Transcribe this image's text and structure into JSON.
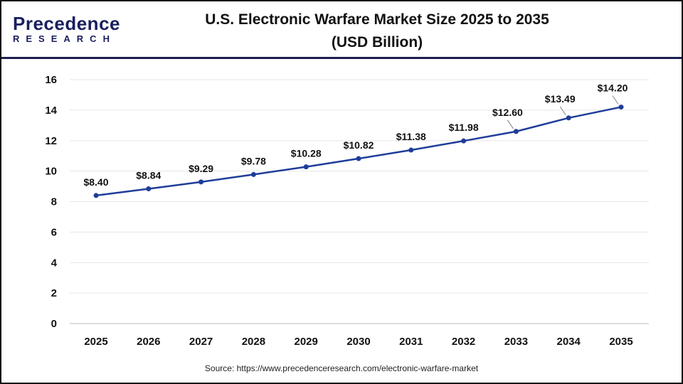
{
  "logo": {
    "line1": "Precedence",
    "line2": "RESEARCH"
  },
  "title_line1": "U.S. Electronic Warfare Market Size 2025 to 2035",
  "title_line2": "(USD Billion)",
  "source": "Source: https://www.precedenceresearch.com/electronic-warfare-market",
  "chart_data": {
    "type": "line",
    "title": "U.S. Electronic Warfare Market Size 2025 to 2035 (USD Billion)",
    "categories": [
      "2025",
      "2026",
      "2027",
      "2028",
      "2029",
      "2030",
      "2031",
      "2032",
      "2033",
      "2034",
      "2035"
    ],
    "values": [
      8.4,
      8.84,
      9.29,
      9.78,
      10.28,
      10.82,
      11.38,
      11.98,
      12.6,
      13.49,
      14.2
    ],
    "data_labels": [
      "$8.40",
      "$8.84",
      "$9.29",
      "$9.78",
      "$10.28",
      "$10.82",
      "$11.38",
      "$11.98",
      "$12.60",
      "$13.49",
      "$14.20"
    ],
    "ylim": [
      0,
      16
    ],
    "yticks": [
      0,
      2,
      4,
      6,
      8,
      10,
      12,
      14,
      16
    ],
    "grid": true,
    "line_color": "#1f3d99",
    "xlabel": "",
    "ylabel": ""
  }
}
